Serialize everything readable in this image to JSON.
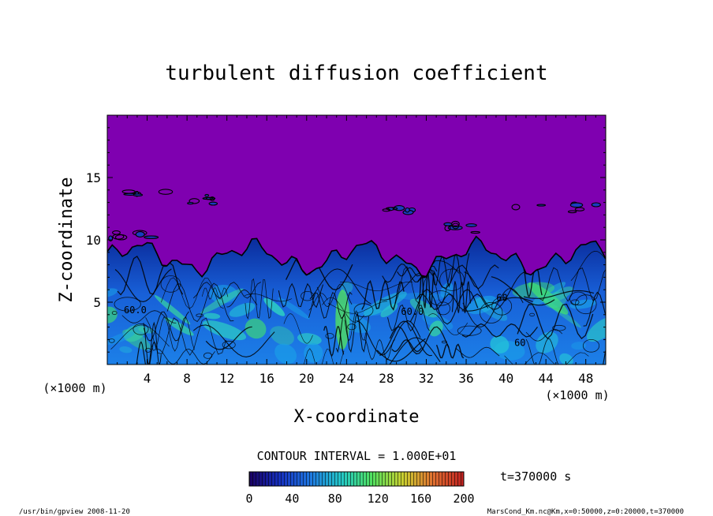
{
  "chart_data": {
    "type": "heatmap",
    "title": "turbulent diffusion coefficient",
    "xlabel": "X-coordinate",
    "ylabel": "Z-coordinate",
    "x_unit": "(×1000 m)",
    "z_unit": "(×1000 m)",
    "xlim": [
      0,
      50
    ],
    "zlim": [
      0,
      20
    ],
    "x_ticks": [
      4,
      8,
      12,
      16,
      20,
      24,
      28,
      32,
      36,
      40,
      44,
      48
    ],
    "z_ticks": [
      5,
      10,
      15
    ],
    "contour_interval_text": "CONTOUR INTERVAL = 1.000E+01",
    "contour_labels": [
      {
        "text": "60.0",
        "x": 2.8,
        "z": 4.1
      },
      {
        "text": "60.0",
        "x": 30.6,
        "z": 4.0
      },
      {
        "text": "60",
        "x": 39.6,
        "z": 5.1
      },
      {
        "text": "60",
        "x": 41.4,
        "z": 1.5
      }
    ],
    "colorbar": {
      "min": 0,
      "max": 200,
      "ticks": [
        0,
        40,
        80,
        120,
        160,
        200
      ],
      "colors": [
        "#1a0060",
        "#1530c0",
        "#1f78e0",
        "#22c8c8",
        "#50e060",
        "#c8d030",
        "#e07030",
        "#c02020"
      ]
    },
    "background_color": "#7f00b0",
    "time_label": "t=370000 s",
    "footer_left": "/usr/bin/gpview   2008-11-20",
    "footer_right": "MarsCond_Km.nc@Km,x=0:50000,z=0:20000,t=370000"
  }
}
